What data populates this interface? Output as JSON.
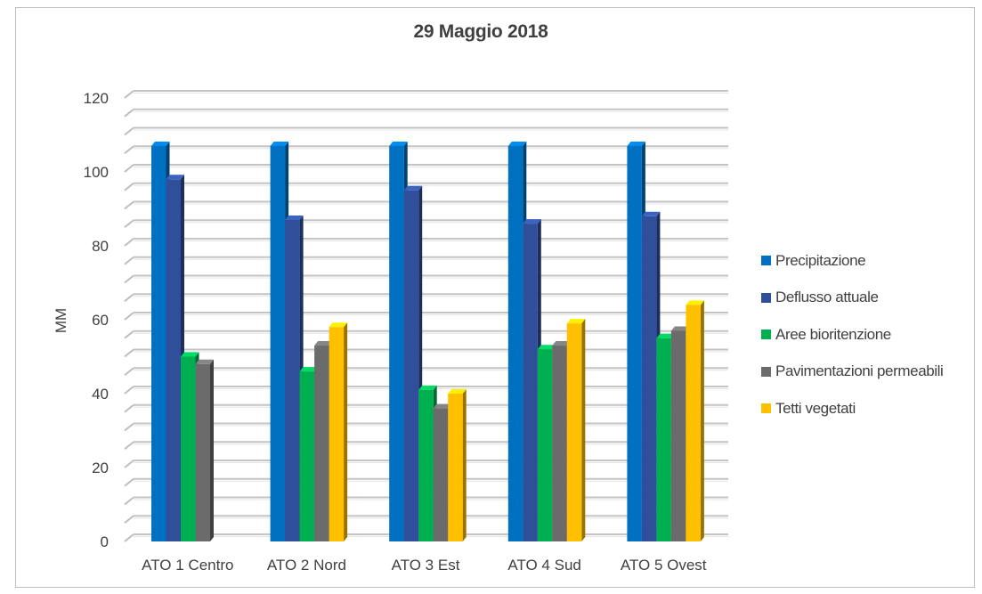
{
  "chart_data": {
    "type": "bar",
    "title": "29 Maggio 2018",
    "xlabel": "",
    "ylabel": "MM",
    "ylim": [
      0,
      120
    ],
    "yticks": [
      "0",
      "20",
      "40",
      "60",
      "80",
      "100",
      "120"
    ],
    "categories": [
      "ATO 1 Centro",
      "ATO 2 Nord",
      "ATO 3 Est",
      "ATO 4 Sud",
      "ATO 5 Ovest"
    ],
    "series": [
      {
        "name": "Precipitazione",
        "color": "#0070c0",
        "values": [
          107,
          107,
          107,
          107,
          107
        ]
      },
      {
        "name": "Deflusso attuale",
        "color": "#2f4f9a",
        "values": [
          98,
          87,
          95,
          86,
          88
        ]
      },
      {
        "name": "Aree bioritenzione",
        "color": "#00b050",
        "values": [
          50,
          46,
          41,
          52,
          55
        ]
      },
      {
        "name": "Pavimentazioni permeabili",
        "color": "#6b6b6b",
        "values": [
          48,
          53,
          36,
          53,
          57
        ]
      },
      {
        "name": "Tetti vegetati",
        "color": "#ffc000",
        "values": [
          null,
          58,
          40,
          59,
          64
        ]
      }
    ],
    "grid": true,
    "legend_position": "right"
  }
}
